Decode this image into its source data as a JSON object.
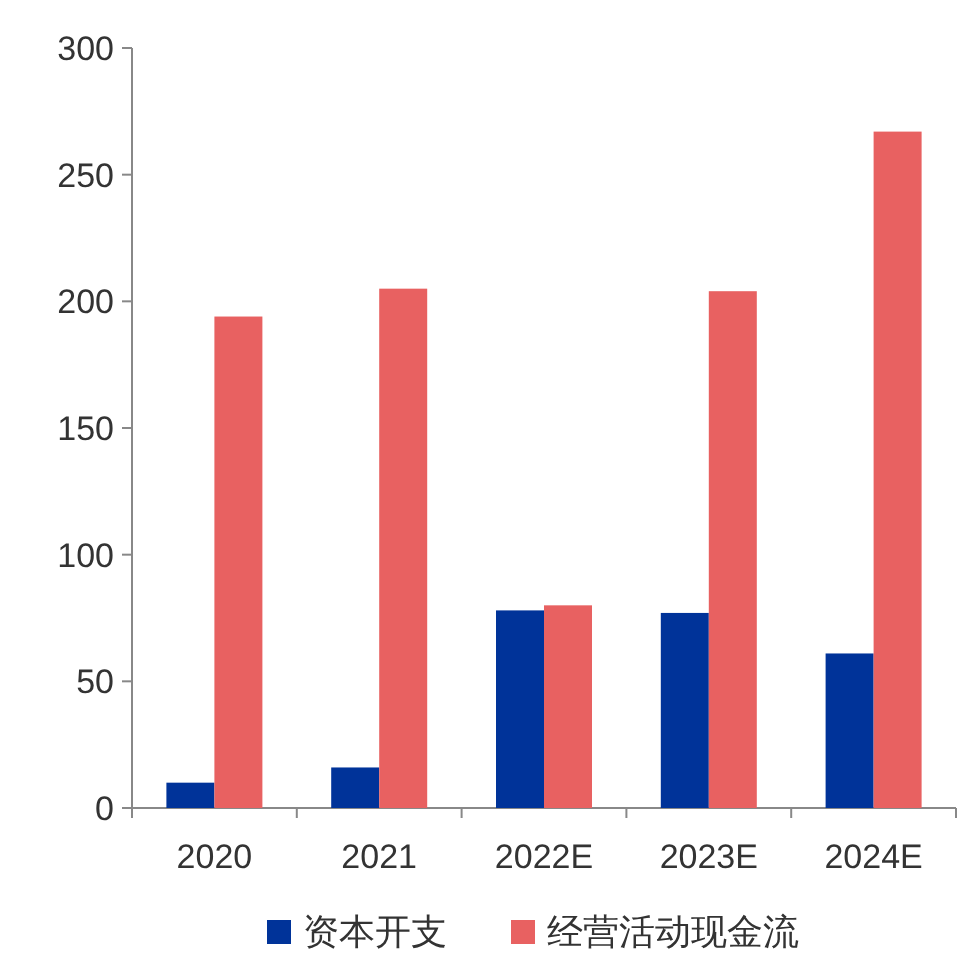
{
  "chart_data": {
    "type": "bar",
    "categories": [
      "2020",
      "2021",
      "2022E",
      "2023E",
      "2024E"
    ],
    "series": [
      {
        "name": "资本开支",
        "color": "#003399",
        "values": [
          10,
          16,
          78,
          77,
          61
        ]
      },
      {
        "name": "经营活动现金流",
        "color": "#e86161",
        "values": [
          194,
          205,
          80,
          204,
          267
        ]
      }
    ],
    "ylim": [
      0,
      300
    ],
    "yticks": [
      0,
      50,
      100,
      150,
      200,
      250,
      300
    ],
    "grid": false,
    "legend": "bottom"
  }
}
